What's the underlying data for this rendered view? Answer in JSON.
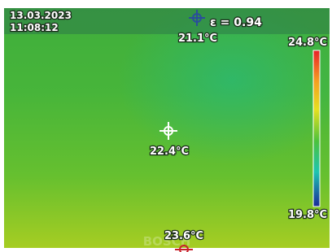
{
  "header": {
    "date": "13.03.2023",
    "time": "11:08:12",
    "emissivity": "ε = 0.94"
  },
  "scale": {
    "max": "24.8°C",
    "min": "19.8°C"
  },
  "spots": [
    {
      "label": "21.1°C"
    },
    {
      "label": "22.4°C"
    },
    {
      "label": "23.6°C"
    }
  ],
  "watermark": "BOSCH"
}
